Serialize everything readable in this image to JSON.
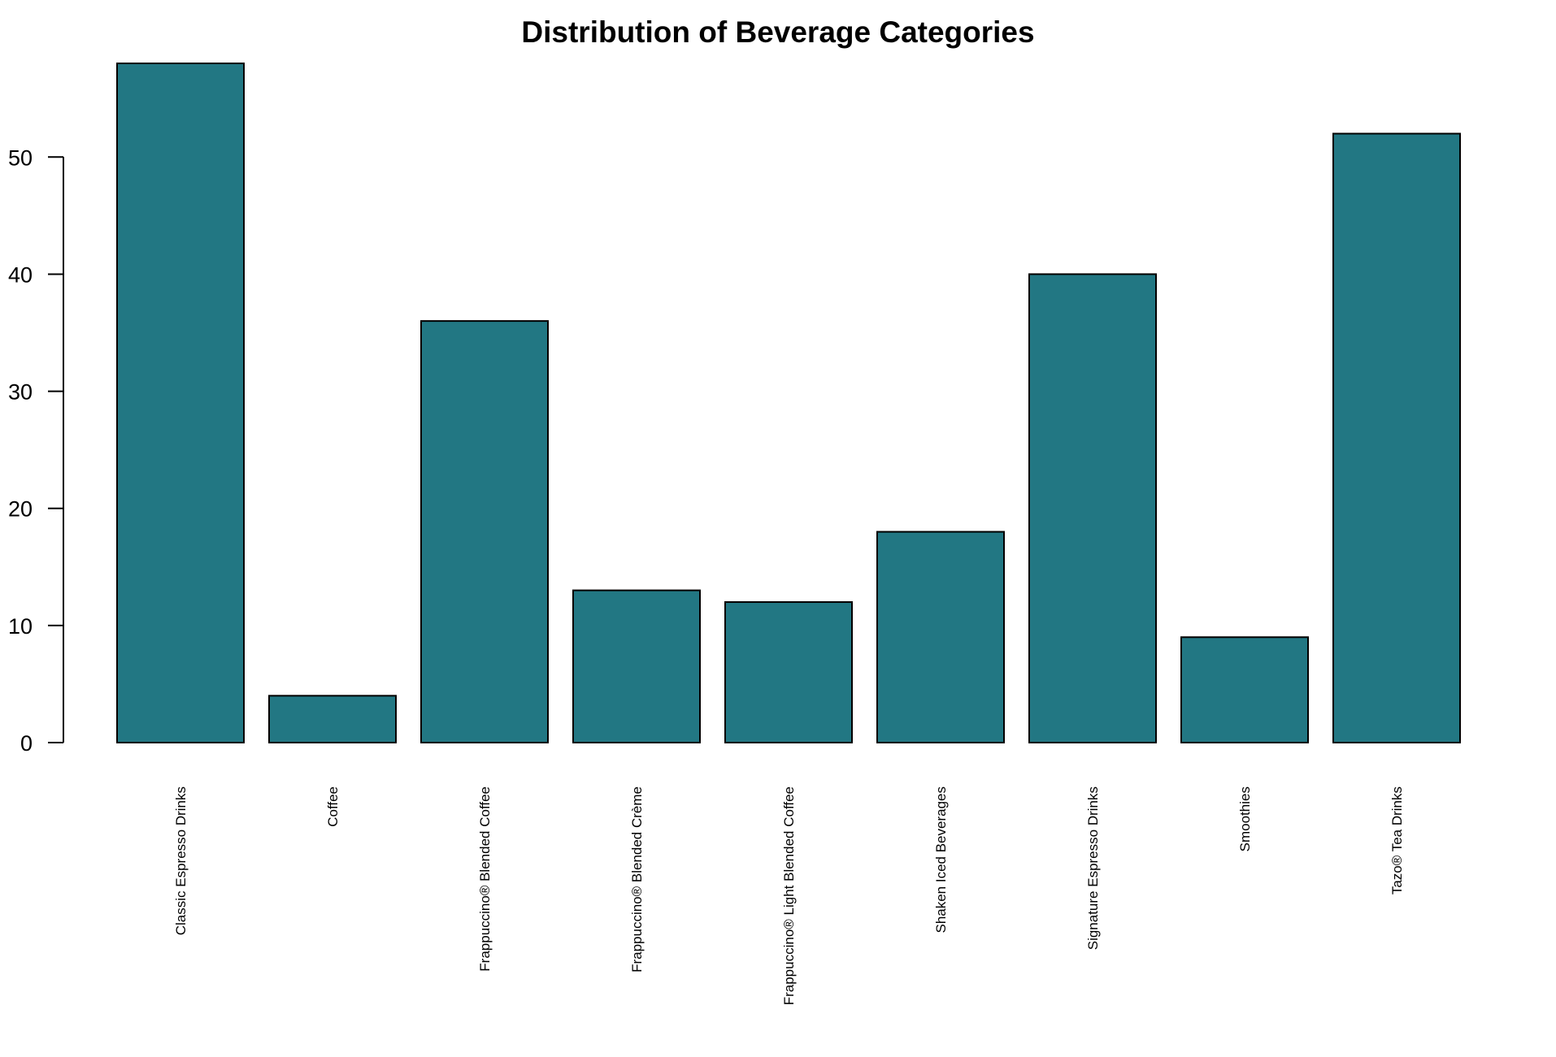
{
  "colors": {
    "bar_fill": "#227783",
    "bar_stroke": "#000000",
    "axis": "#000000",
    "background": "#ffffff"
  },
  "chart_data": {
    "type": "bar",
    "title": "Distribution of Beverage Categories",
    "xlabel": "",
    "ylabel": "",
    "categories": [
      "Classic Espresso Drinks",
      "Coffee",
      "Frappuccino® Blended Coffee",
      "Frappuccino® Blended Crème",
      "Frappuccino® Light Blended Coffee",
      "Shaken Iced Beverages",
      "Signature Espresso Drinks",
      "Smoothies",
      "Tazo® Tea Drinks"
    ],
    "values": [
      58,
      4,
      36,
      13,
      12,
      18,
      40,
      9,
      52
    ],
    "ylim": [
      0,
      58
    ],
    "yticks": [
      0,
      10,
      20,
      30,
      40,
      50
    ],
    "ytick_labels": [
      "0",
      "10",
      "20",
      "30",
      "40",
      "50"
    ],
    "x_label_orientation": "vertical",
    "grid": false,
    "legend": "none"
  }
}
